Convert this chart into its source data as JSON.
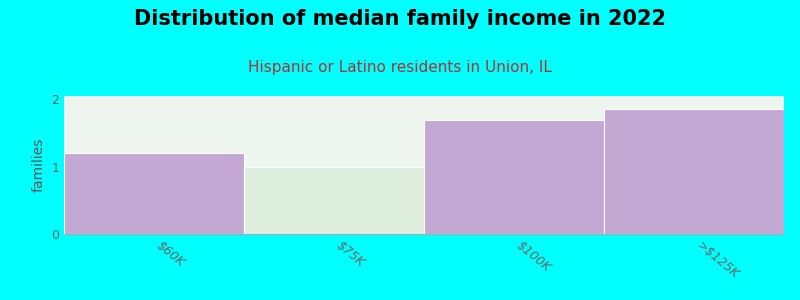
{
  "title": "Distribution of median family income in 2022",
  "subtitle": "Hispanic or Latino residents in Union, IL",
  "categories": [
    "$60K",
    "$75K",
    "$100K",
    ">$125K"
  ],
  "values": [
    1.2,
    1.0,
    1.7,
    1.85
  ],
  "bar_colors": [
    "#c4a8d4",
    "#ddeedd",
    "#c4a8d4",
    "#c4a8d4"
  ],
  "ylabel": "families",
  "ylim": [
    0,
    2.05
  ],
  "yticks": [
    0,
    1,
    2
  ],
  "background_color": "#00FFFF",
  "plot_bg_color": "#eef5ee",
  "title_fontsize": 15,
  "subtitle_fontsize": 11,
  "subtitle_color": "#aa3333",
  "bar_edge_color": "#ffffff",
  "bar_linewidth": 0.8,
  "tick_color": "#666666",
  "ylabel_color": "#555555",
  "ylabel_fontsize": 10
}
